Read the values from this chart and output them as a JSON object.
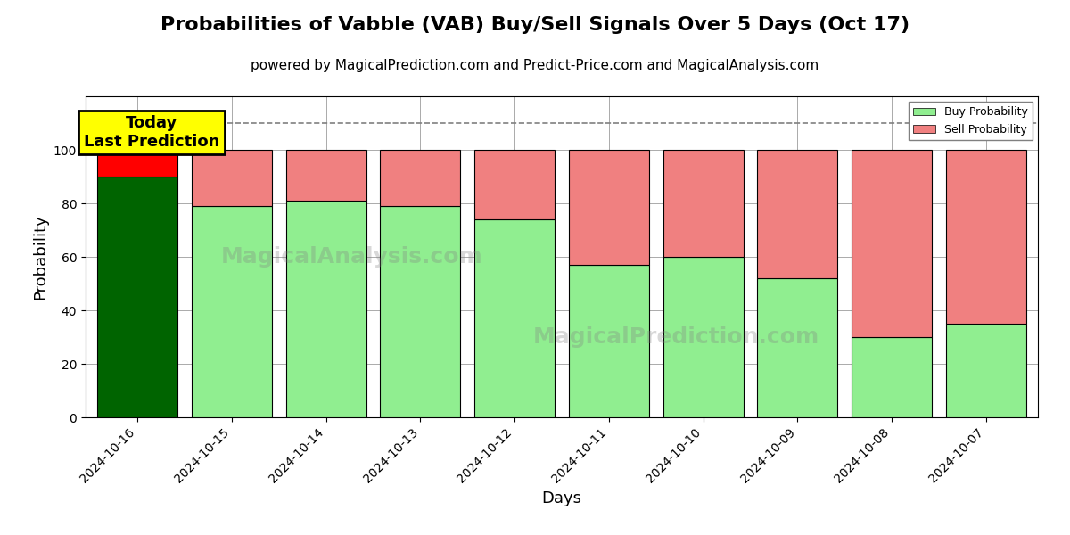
{
  "title": "Probabilities of Vabble (VAB) Buy/Sell Signals Over 5 Days (Oct 17)",
  "subtitle": "powered by MagicalPrediction.com and Predict-Price.com and MagicalAnalysis.com",
  "xlabel": "Days",
  "ylabel": "Probability",
  "categories": [
    "2024-10-16",
    "2024-10-15",
    "2024-10-14",
    "2024-10-13",
    "2024-10-12",
    "2024-10-11",
    "2024-10-10",
    "2024-10-09",
    "2024-10-08",
    "2024-10-07"
  ],
  "buy_values": [
    90,
    79,
    81,
    79,
    74,
    57,
    60,
    52,
    30,
    35
  ],
  "sell_values": [
    10,
    21,
    19,
    21,
    26,
    43,
    40,
    48,
    70,
    65
  ],
  "buy_colors": [
    "#006400",
    "#90EE90",
    "#90EE90",
    "#90EE90",
    "#90EE90",
    "#90EE90",
    "#90EE90",
    "#90EE90",
    "#90EE90",
    "#90EE90"
  ],
  "sell_colors": [
    "#FF0000",
    "#F08080",
    "#F08080",
    "#F08080",
    "#F08080",
    "#F08080",
    "#F08080",
    "#F08080",
    "#F08080",
    "#F08080"
  ],
  "today_label": "Today\nLast Prediction",
  "today_box_color": "#FFFF00",
  "legend_buy_color": "#90EE90",
  "legend_sell_color": "#F08080",
  "legend_buy_label": "Buy Probability",
  "legend_sell_label": "Sell Probability",
  "ylim": [
    0,
    120
  ],
  "yticks": [
    0,
    20,
    40,
    60,
    80,
    100
  ],
  "dashed_line_y": 110,
  "background_color": "#ffffff",
  "grid_color": "#aaaaaa",
  "bar_width": 0.85,
  "title_fontsize": 16,
  "subtitle_fontsize": 11,
  "label_fontsize": 13
}
